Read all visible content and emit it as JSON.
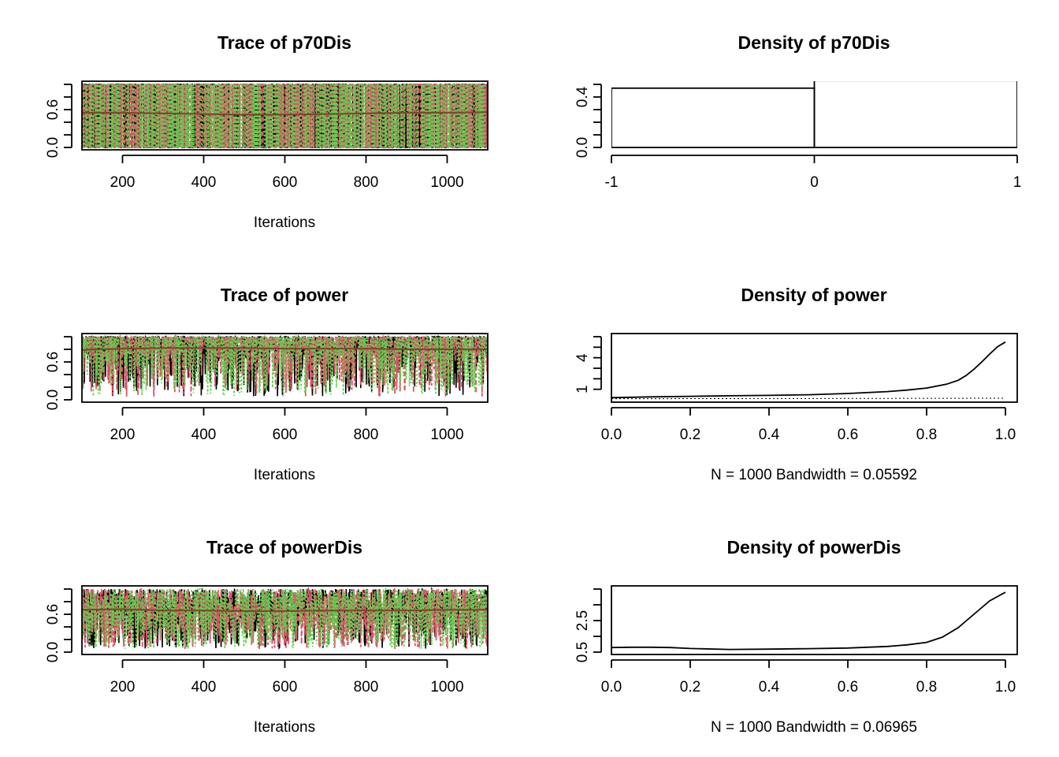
{
  "colors": {
    "chain1": "#000000",
    "chain2": "#DF536B",
    "chain3": "#61D04F",
    "axis": "#000000",
    "background": "#ffffff"
  },
  "chart_data": [
    {
      "id": "trace-p70Dis",
      "type": "line",
      "title": "Trace of p70Dis",
      "xlabel": "Iterations",
      "xlim": [
        100,
        1100
      ],
      "ylim": [
        0,
        1
      ],
      "x_ticks": [
        "200",
        "400",
        "600",
        "800",
        "1000"
      ],
      "y_ticks": [
        "0.0",
        "0.6"
      ],
      "series": [
        {
          "color": "#000000",
          "style": "solid",
          "mean": 0.5
        },
        {
          "color": "#DF536B",
          "style": "dashed",
          "mean": 0.5
        },
        {
          "color": "#61D04F",
          "style": "dotted",
          "mean": 0.5
        }
      ],
      "running_mean": [
        0.55,
        0.55,
        0.54,
        0.53,
        0.52,
        0.52,
        0.53,
        0.54,
        0.55,
        0.55,
        0.56
      ]
    },
    {
      "id": "density-p70Dis",
      "type": "bar",
      "title": "Density of p70Dis",
      "xlim": [
        -1,
        1
      ],
      "ylim": [
        0,
        0.5
      ],
      "x_ticks": [
        "-1",
        "0",
        "1"
      ],
      "y_ticks": [
        "0.0",
        "0.4"
      ],
      "bins": [
        {
          "from": -1,
          "to": 0,
          "density": 0.47
        },
        {
          "from": 0,
          "to": 1,
          "density": 0.53
        }
      ]
    },
    {
      "id": "trace-power",
      "type": "line",
      "title": "Trace of power",
      "xlabel": "Iterations",
      "xlim": [
        100,
        1100
      ],
      "ylim": [
        0,
        1
      ],
      "x_ticks": [
        "200",
        "400",
        "600",
        "800",
        "1000"
      ],
      "y_ticks": [
        "0.0",
        "0.6"
      ],
      "series": [
        {
          "color": "#000000",
          "style": "solid",
          "mean": 0.82
        },
        {
          "color": "#DF536B",
          "style": "dashed",
          "mean": 0.82
        },
        {
          "color": "#61D04F",
          "style": "dotted",
          "mean": 0.82
        }
      ],
      "running_mean": [
        0.79,
        0.81,
        0.82,
        0.82,
        0.82,
        0.81,
        0.81,
        0.81,
        0.8,
        0.8,
        0.8
      ]
    },
    {
      "id": "density-power",
      "type": "line",
      "title": "Density of power",
      "xlabel": "N = 1000   Bandwidth = 0.05592",
      "xlim": [
        0,
        1.03
      ],
      "ylim": [
        0,
        6
      ],
      "x_ticks": [
        "0.0",
        "0.2",
        "0.4",
        "0.6",
        "0.8",
        "1.0"
      ],
      "y_ticks": [
        "1",
        "4"
      ],
      "x": [
        0,
        0.1,
        0.2,
        0.3,
        0.4,
        0.5,
        0.6,
        0.7,
        0.75,
        0.8,
        0.85,
        0.88,
        0.9,
        0.92,
        0.94,
        0.96,
        0.98,
        1.0
      ],
      "y": [
        0.2,
        0.28,
        0.33,
        0.38,
        0.42,
        0.48,
        0.6,
        0.78,
        0.92,
        1.12,
        1.48,
        1.85,
        2.3,
        2.9,
        3.6,
        4.35,
        5.05,
        5.5
      ]
    },
    {
      "id": "trace-powerDis",
      "type": "line",
      "title": "Trace of powerDis",
      "xlabel": "Iterations",
      "xlim": [
        100,
        1100
      ],
      "ylim": [
        0,
        1
      ],
      "x_ticks": [
        "200",
        "400",
        "600",
        "800",
        "1000"
      ],
      "y_ticks": [
        "0.0",
        "0.6"
      ],
      "series": [
        {
          "color": "#000000",
          "style": "solid",
          "mean": 0.65
        },
        {
          "color": "#DF536B",
          "style": "dashed",
          "mean": 0.65
        },
        {
          "color": "#61D04F",
          "style": "dotted",
          "mean": 0.65
        }
      ],
      "running_mean": [
        0.67,
        0.68,
        0.66,
        0.66,
        0.65,
        0.65,
        0.66,
        0.66,
        0.66,
        0.67,
        0.67
      ]
    },
    {
      "id": "density-powerDis",
      "type": "line",
      "title": "Density of powerDis",
      "xlabel": "N = 1000   Bandwidth = 0.06965",
      "xlim": [
        0,
        1.03
      ],
      "ylim": [
        0.5,
        4.5
      ],
      "x_ticks": [
        "0.0",
        "0.2",
        "0.4",
        "0.6",
        "0.8",
        "1.0"
      ],
      "y_ticks": [
        "0.5",
        "2.5"
      ],
      "x": [
        0,
        0.05,
        0.1,
        0.15,
        0.2,
        0.3,
        0.4,
        0.5,
        0.6,
        0.7,
        0.75,
        0.8,
        0.84,
        0.88,
        0.92,
        0.96,
        1.0
      ],
      "y": [
        0.79,
        0.81,
        0.81,
        0.79,
        0.73,
        0.67,
        0.69,
        0.72,
        0.76,
        0.86,
        0.96,
        1.12,
        1.45,
        2.05,
        2.9,
        3.75,
        4.3
      ]
    }
  ]
}
